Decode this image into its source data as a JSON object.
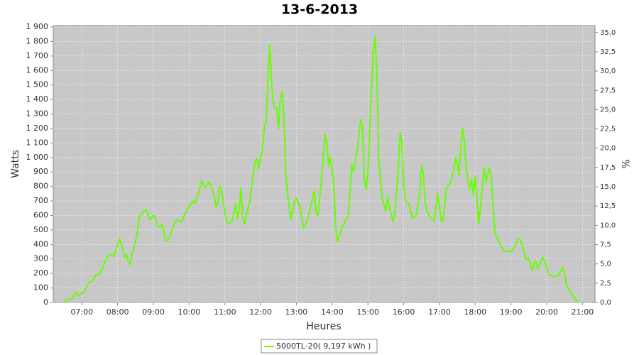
{
  "chart_data": {
    "type": "line",
    "title": "13-6-2013",
    "x_label": "Heures",
    "y_label": "Watts",
    "y2_label": "%",
    "grid": true,
    "background": "#c8c8c8",
    "legend_position": "bottom",
    "xlim": [
      6.2,
      21.35
    ],
    "ylim": [
      0,
      1910
    ],
    "y2lim": [
      0,
      35.9
    ],
    "xticks": [
      {
        "value": 7,
        "label": "07:00"
      },
      {
        "value": 8,
        "label": "08:00"
      },
      {
        "value": 9,
        "label": "09:00"
      },
      {
        "value": 10,
        "label": "10:00"
      },
      {
        "value": 11,
        "label": "11:00"
      },
      {
        "value": 12,
        "label": "12:00"
      },
      {
        "value": 13,
        "label": "13:00"
      },
      {
        "value": 14,
        "label": "14:00"
      },
      {
        "value": 15,
        "label": "15:00"
      },
      {
        "value": 16,
        "label": "16:00"
      },
      {
        "value": 17,
        "label": "17:00"
      },
      {
        "value": 18,
        "label": "18:00"
      },
      {
        "value": 19,
        "label": "19:00"
      },
      {
        "value": 20,
        "label": "20:00"
      },
      {
        "value": 21,
        "label": "21:00"
      }
    ],
    "yticks": [
      0,
      100,
      200,
      300,
      400,
      500,
      600,
      700,
      800,
      900,
      {
        "value": 1000,
        "label": "1 000"
      },
      {
        "value": 1100,
        "label": "1 100"
      },
      {
        "value": 1200,
        "label": "1 200"
      },
      {
        "value": 1300,
        "label": "1 300"
      },
      {
        "value": 1400,
        "label": "1 400"
      },
      {
        "value": 1500,
        "label": "1 500"
      },
      {
        "value": 1600,
        "label": "1 600"
      },
      {
        "value": 1700,
        "label": "1 700"
      },
      {
        "value": 1800,
        "label": "1 800"
      },
      {
        "value": 1900,
        "label": "1 900"
      }
    ],
    "y2ticks": [
      {
        "value": 0,
        "label": "0,0"
      },
      {
        "value": 2.5,
        "label": "2,5"
      },
      {
        "value": 5,
        "label": "5,0"
      },
      {
        "value": 7.5,
        "label": "7,5"
      },
      {
        "value": 10,
        "label": "10,0"
      },
      {
        "value": 12.5,
        "label": "12,5"
      },
      {
        "value": 15,
        "label": "15,0"
      },
      {
        "value": 17.5,
        "label": "17,5"
      },
      {
        "value": 20,
        "label": "20,0"
      },
      {
        "value": 22.5,
        "label": "22,5"
      },
      {
        "value": 25,
        "label": "25,0"
      },
      {
        "value": 27.5,
        "label": "27,5"
      },
      {
        "value": 30,
        "label": "30,0"
      },
      {
        "value": 32.5,
        "label": "32,5"
      },
      {
        "value": 35,
        "label": "35,0"
      }
    ],
    "x": [
      6.5,
      6.6,
      6.75,
      6.82,
      6.9,
      7.0,
      7.1,
      7.2,
      7.3,
      7.4,
      7.5,
      7.6,
      7.7,
      7.8,
      7.9,
      8.0,
      8.05,
      8.1,
      8.2,
      8.25,
      8.3,
      8.35,
      8.4,
      8.5,
      8.55,
      8.6,
      8.7,
      8.8,
      8.9,
      9.0,
      9.05,
      9.1,
      9.2,
      9.25,
      9.3,
      9.35,
      9.45,
      9.55,
      9.65,
      9.75,
      9.8,
      9.9,
      10.0,
      10.1,
      10.15,
      10.25,
      10.3,
      10.35,
      10.45,
      10.55,
      10.6,
      10.7,
      10.75,
      10.8,
      10.85,
      10.9,
      11.0,
      11.05,
      11.1,
      11.2,
      11.3,
      11.35,
      11.4,
      11.45,
      11.5,
      11.55,
      11.6,
      11.7,
      11.8,
      11.85,
      11.9,
      11.95,
      12.0,
      12.05,
      12.1,
      12.15,
      12.2,
      12.25,
      12.3,
      12.35,
      12.4,
      12.45,
      12.5,
      12.55,
      12.6,
      12.65,
      12.7,
      12.75,
      12.8,
      12.85,
      12.95,
      13.0,
      13.1,
      13.2,
      13.3,
      13.4,
      13.5,
      13.55,
      13.6,
      13.7,
      13.8,
      13.85,
      13.9,
      13.95,
      14.0,
      14.05,
      14.1,
      14.15,
      14.2,
      14.3,
      14.45,
      14.5,
      14.55,
      14.6,
      14.7,
      14.8,
      14.85,
      14.9,
      14.95,
      15.0,
      15.05,
      15.15,
      15.2,
      15.25,
      15.3,
      15.4,
      15.5,
      15.55,
      15.6,
      15.7,
      15.75,
      15.85,
      15.9,
      15.95,
      16.0,
      16.05,
      16.15,
      16.25,
      16.35,
      16.45,
      16.5,
      16.55,
      16.6,
      16.7,
      16.8,
      16.85,
      16.95,
      17.0,
      17.05,
      17.1,
      17.2,
      17.3,
      17.4,
      17.45,
      17.5,
      17.55,
      17.6,
      17.65,
      17.7,
      17.75,
      17.85,
      17.9,
      17.95,
      18.0,
      18.1,
      18.15,
      18.25,
      18.3,
      18.4,
      18.45,
      18.55,
      18.6,
      18.7,
      18.8,
      18.9,
      19.0,
      19.1,
      19.2,
      19.25,
      19.35,
      19.4,
      19.5,
      19.55,
      19.6,
      19.65,
      19.7,
      19.75,
      19.85,
      19.9,
      19.95,
      20.05,
      20.15,
      20.3,
      20.35,
      20.45,
      20.5,
      20.55,
      20.65,
      20.75,
      20.85,
      20.9
    ],
    "series": [
      {
        "name": "5000TL-20( 9,197 kWh )",
        "color": "#66ff00",
        "values": [
          0,
          20,
          30,
          70,
          50,
          60,
          90,
          140,
          150,
          190,
          200,
          250,
          310,
          330,
          320,
          400,
          440,
          410,
          310,
          330,
          280,
          260,
          330,
          420,
          480,
          590,
          620,
          640,
          570,
          600,
          590,
          530,
          520,
          540,
          470,
          420,
          450,
          520,
          570,
          560,
          560,
          620,
          660,
          700,
          680,
          740,
          790,
          840,
          790,
          830,
          810,
          740,
          660,
          680,
          800,
          790,
          620,
          560,
          540,
          560,
          680,
          580,
          640,
          790,
          590,
          540,
          600,
          700,
          900,
          980,
          990,
          920,
          1000,
          1050,
          1200,
          1250,
          1500,
          1780,
          1550,
          1380,
          1340,
          1340,
          1200,
          1400,
          1450,
          1300,
          900,
          750,
          660,
          570,
          700,
          720,
          660,
          510,
          560,
          660,
          770,
          620,
          600,
          840,
          1160,
          1100,
          940,
          1000,
          920,
          800,
          510,
          420,
          460,
          530,
          600,
          760,
          950,
          900,
          1050,
          1260,
          1200,
          840,
          780,
          900,
          1200,
          1720,
          1830,
          1600,
          1000,
          720,
          630,
          730,
          660,
          560,
          600,
          930,
          1170,
          1100,
          830,
          700,
          680,
          580,
          600,
          750,
          940,
          890,
          680,
          600,
          570,
          560,
          750,
          670,
          560,
          570,
          790,
          820,
          910,
          1000,
          960,
          880,
          1070,
          1200,
          1100,
          920,
          780,
          850,
          740,
          870,
          540,
          660,
          930,
          830,
          930,
          860,
          480,
          450,
          400,
          360,
          350,
          350,
          380,
          440,
          440,
          370,
          300,
          300,
          260,
          220,
          270,
          280,
          230,
          290,
          310,
          280,
          200,
          180,
          180,
          200,
          240,
          200,
          120,
          80,
          40,
          10,
          0
        ]
      }
    ]
  }
}
